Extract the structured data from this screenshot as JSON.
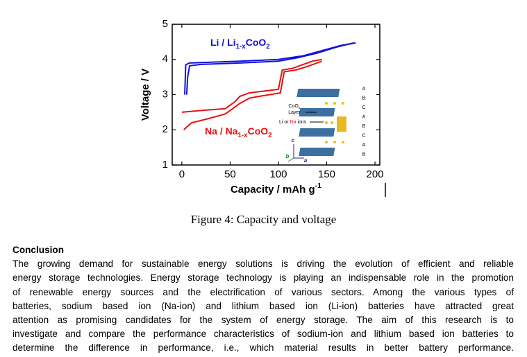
{
  "chart_data": {
    "type": "line",
    "xlabel": [
      "Capacity  /  mAh g",
      "-1"
    ],
    "ylabel": "Voltage  /  V",
    "xlim": [
      -10,
      205
    ],
    "xticks": [
      0,
      50,
      100,
      150,
      200
    ],
    "ylim": [
      1,
      5
    ],
    "yticks": [
      1,
      2,
      3,
      4,
      5
    ],
    "series": [
      {
        "color": "#1010e0",
        "x": [
          3,
          4,
          8,
          30,
          60,
          100,
          125,
          145,
          165,
          180
        ],
        "values": [
          3.0,
          3.85,
          3.9,
          3.92,
          3.95,
          4.0,
          4.1,
          4.25,
          4.4,
          4.47
        ]
      },
      {
        "color": "#1010e0",
        "x": [
          178,
          160,
          140,
          120,
          100,
          60,
          20,
          8,
          6,
          5
        ],
        "values": [
          4.47,
          4.35,
          4.18,
          4.05,
          3.95,
          3.9,
          3.86,
          3.82,
          3.5,
          3.0
        ]
      },
      {
        "color": "#e81010",
        "x": [
          0,
          20,
          45,
          55,
          60,
          70,
          85,
          100,
          104,
          115,
          125,
          135,
          145
        ],
        "values": [
          2.5,
          2.55,
          2.6,
          2.8,
          2.95,
          3.05,
          3.1,
          3.15,
          3.7,
          3.75,
          3.85,
          3.95,
          4.0
        ]
      },
      {
        "color": "#e81010",
        "x": [
          145,
          130,
          118,
          106,
          102,
          80,
          70,
          60,
          45,
          25,
          10,
          2
        ],
        "values": [
          3.95,
          3.8,
          3.7,
          3.65,
          3.05,
          2.95,
          2.9,
          2.75,
          2.45,
          2.3,
          2.2,
          2.0
        ]
      }
    ],
    "annotations": [
      {
        "parts": [
          "Li / Li",
          "1-x",
          "CoO",
          "2"
        ],
        "color": "#1010e0"
      },
      {
        "parts": [
          "Na / Na",
          "1-x",
          "CoO",
          "2"
        ],
        "color": "#e81010"
      }
    ],
    "inset": {
      "coo2_label": [
        "CoO",
        "2"
      ],
      "layer_label": "Layer",
      "ions_label": [
        "Li or ",
        "Na",
        " ions"
      ],
      "stacking": [
        "A",
        "B",
        "C",
        "A",
        "B",
        "C",
        "A",
        "B"
      ],
      "axes": [
        "c",
        "b",
        "a"
      ]
    }
  },
  "caption": "Figure 4: Capacity and voltage",
  "conclusion": {
    "heading": "Conclusion",
    "lines": [
      "The growing demand for sustainable energy solutions is driving the evolution of efficient and reliable",
      "energy storage technologies. Energy storage technology is playing an indispensable role in the promotion",
      "of renewable energy sources and the electrification of various sectors. Among the various types of",
      "batteries, sodium based ion (Na-ion) and lithium based ion (Li-ion) batteries have attracted great",
      "attention as promising candidates for the system of energy storage. The aim of this research is to",
      "investigate and compare the performance characteristics of sodium-ion and lithium based ion batteries to",
      "determine the difference in performance, i.e., which material results in better battery performance."
    ]
  }
}
